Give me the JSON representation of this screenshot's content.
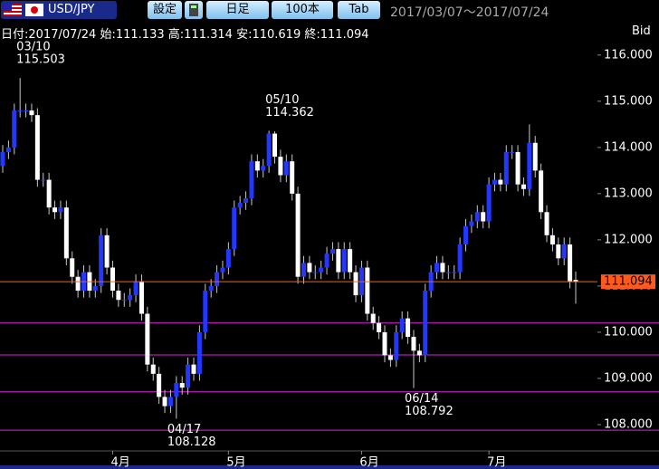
{
  "toolbar": {
    "symbol": "USD/JPY",
    "buttons": [
      "設定",
      "日足",
      "100本",
      "Tab"
    ],
    "range": "2017/03/07～2017/07/24"
  },
  "info": {
    "date_label": "日付:",
    "date": "2017/07/24",
    "open_label": "始:",
    "high_label": "高:",
    "low_label": "安:",
    "close_label": "終:",
    "price_side": "Bid"
  },
  "chart_data": {
    "type": "candlestick",
    "categories": [
      null,
      null,
      null,
      null,
      null,
      null,
      null,
      null,
      null,
      null,
      null,
      null,
      null,
      null,
      null,
      null,
      null,
      null,
      null,
      "4月",
      null,
      null,
      null,
      null,
      null,
      null,
      null,
      null,
      null,
      null,
      null,
      null,
      null,
      null,
      null,
      null,
      null,
      null,
      null,
      "5月",
      null,
      null,
      null,
      null,
      null,
      null,
      null,
      null,
      null,
      null,
      null,
      null,
      null,
      null,
      null,
      null,
      null,
      null,
      null,
      null,
      null,
      null,
      "6月",
      null,
      null,
      null,
      null,
      null,
      null,
      null,
      null,
      null,
      null,
      null,
      null,
      null,
      null,
      null,
      null,
      null,
      null,
      null,
      null,
      null,
      "7月",
      null,
      null,
      null,
      null,
      null,
      null,
      null,
      null,
      null,
      null,
      null,
      null,
      null,
      null,
      null
    ],
    "open": [
      113.6,
      113.9,
      114.0,
      114.8,
      114.8,
      114.8,
      114.7,
      113.3,
      113.3,
      112.7,
      112.6,
      112.7,
      111.6,
      111.2,
      110.9,
      111.3,
      110.9,
      111.0,
      112.1,
      111.4,
      110.9,
      110.7,
      110.7,
      110.8,
      111.1,
      110.4,
      109.3,
      109.1,
      108.6,
      108.4,
      108.6,
      108.9,
      108.8,
      109.3,
      109.1,
      110.0,
      110.9,
      111.0,
      111.3,
      111.4,
      111.8,
      112.7,
      112.8,
      112.9,
      113.7,
      113.5,
      113.6,
      114.3,
      113.8,
      113.4,
      113.7,
      113.0,
      111.2,
      111.5,
      111.3,
      111.3,
      111.4,
      111.7,
      111.8,
      111.3,
      111.8,
      111.3,
      110.8,
      111.4,
      110.4,
      110.2,
      110.0,
      109.5,
      109.4,
      110.0,
      110.3,
      109.9,
      109.6,
      109.5,
      110.9,
      111.3,
      111.5,
      111.3,
      111.3,
      111.3,
      111.9,
      112.3,
      112.4,
      112.6,
      112.4,
      113.2,
      113.3,
      113.2,
      113.9,
      113.9,
      113.2,
      113.1,
      114.1,
      113.5,
      112.6,
      112.1,
      111.9,
      111.6,
      111.9,
      111.133
    ],
    "high": [
      114.05,
      114.15,
      114.95,
      115.503,
      114.95,
      114.95,
      114.85,
      113.45,
      113.45,
      112.85,
      112.85,
      112.85,
      111.75,
      111.35,
      111.45,
      111.45,
      111.15,
      112.25,
      112.25,
      111.55,
      111.05,
      110.85,
      110.95,
      111.25,
      111.25,
      110.55,
      109.45,
      109.25,
      108.75,
      108.75,
      109.05,
      109.05,
      109.45,
      109.45,
      110.15,
      111.05,
      111.15,
      111.45,
      111.55,
      111.95,
      112.85,
      112.95,
      113.05,
      113.85,
      113.85,
      113.75,
      114.362,
      114.35,
      113.95,
      113.85,
      113.85,
      113.15,
      111.65,
      111.65,
      111.45,
      111.55,
      111.85,
      111.95,
      111.95,
      111.95,
      111.95,
      111.45,
      111.55,
      111.55,
      110.55,
      110.35,
      110.15,
      109.65,
      110.15,
      110.45,
      110.45,
      110.05,
      109.75,
      111.05,
      111.45,
      111.65,
      111.65,
      111.45,
      111.45,
      112.05,
      112.45,
      112.55,
      112.75,
      112.75,
      113.35,
      113.45,
      113.45,
      114.05,
      114.05,
      114.05,
      113.35,
      114.5,
      114.25,
      113.65,
      112.75,
      112.25,
      112.05,
      112.05,
      112.05,
      111.314
    ],
    "low": [
      113.45,
      113.75,
      113.85,
      114.65,
      114.65,
      114.55,
      113.15,
      113.15,
      112.55,
      112.45,
      112.45,
      111.45,
      111.05,
      110.75,
      110.75,
      110.75,
      110.75,
      110.85,
      111.25,
      110.75,
      110.55,
      110.55,
      110.55,
      110.65,
      110.25,
      109.15,
      108.95,
      108.45,
      108.25,
      108.25,
      108.128,
      108.65,
      108.65,
      108.95,
      108.95,
      109.85,
      110.75,
      110.85,
      111.15,
      111.25,
      111.65,
      112.55,
      112.65,
      112.75,
      113.35,
      113.35,
      113.45,
      113.65,
      113.25,
      113.25,
      112.85,
      111.05,
      111.05,
      111.15,
      111.15,
      111.15,
      111.25,
      111.55,
      111.15,
      111.15,
      111.15,
      110.65,
      110.65,
      110.25,
      110.05,
      109.85,
      109.35,
      109.25,
      109.25,
      109.85,
      109.75,
      108.792,
      109.35,
      109.35,
      110.75,
      111.15,
      111.15,
      111.15,
      111.15,
      111.15,
      111.75,
      112.15,
      112.25,
      112.25,
      112.25,
      113.05,
      113.05,
      113.05,
      113.75,
      113.05,
      112.95,
      112.95,
      113.35,
      112.45,
      111.95,
      111.75,
      111.45,
      111.45,
      110.95,
      110.619
    ],
    "close": [
      113.9,
      114.0,
      114.8,
      114.8,
      114.8,
      114.7,
      113.3,
      113.3,
      112.7,
      112.6,
      112.7,
      111.6,
      111.2,
      110.9,
      111.3,
      110.9,
      111.0,
      112.1,
      111.4,
      110.9,
      110.7,
      110.7,
      110.8,
      111.1,
      110.4,
      109.3,
      109.1,
      108.6,
      108.4,
      108.6,
      108.9,
      108.8,
      109.3,
      109.1,
      110.0,
      110.9,
      111.0,
      111.3,
      111.4,
      111.8,
      112.7,
      112.8,
      112.9,
      113.7,
      113.5,
      113.6,
      114.3,
      113.8,
      113.4,
      113.7,
      113.0,
      111.2,
      111.5,
      111.3,
      111.3,
      111.4,
      111.7,
      111.8,
      111.3,
      111.8,
      111.3,
      110.8,
      111.4,
      110.4,
      110.2,
      110.0,
      109.5,
      109.4,
      110.0,
      110.3,
      109.9,
      109.6,
      109.5,
      110.9,
      111.3,
      111.5,
      111.3,
      111.3,
      111.3,
      111.9,
      112.3,
      112.4,
      112.6,
      112.4,
      113.2,
      113.3,
      113.2,
      113.9,
      113.9,
      113.2,
      113.1,
      114.1,
      113.5,
      112.6,
      112.1,
      111.9,
      111.6,
      111.9,
      111.1,
      111.094
    ],
    "up_color": "#2238ff",
    "down_color": "#ffffff",
    "wick_color": "#c8c8c8",
    "ylim": [
      107.49,
      116.31
    ],
    "yticks": [
      {
        "value": 108,
        "label": "108.000"
      },
      {
        "value": 109,
        "label": "109.000"
      },
      {
        "value": 110,
        "label": "110.000"
      },
      {
        "value": 111,
        "label": "111.000"
      },
      {
        "value": 112,
        "label": "112.000"
      },
      {
        "value": 113,
        "label": "113.000"
      },
      {
        "value": 114,
        "label": "114.000"
      },
      {
        "value": 115,
        "label": "115.000"
      },
      {
        "value": 116,
        "label": "116.000"
      }
    ],
    "current_color": "#ff5a1e",
    "horizontal_lines": [
      110.2,
      109.51,
      108.71,
      107.88
    ],
    "line_color": "#e020e0",
    "annotations": [
      {
        "date": "03/10",
        "value": 115.503
      },
      {
        "date": "05/10",
        "value": 114.362
      },
      {
        "date": "04/17",
        "value": 108.128
      },
      {
        "date": "06/14",
        "value": 108.792
      }
    ]
  }
}
